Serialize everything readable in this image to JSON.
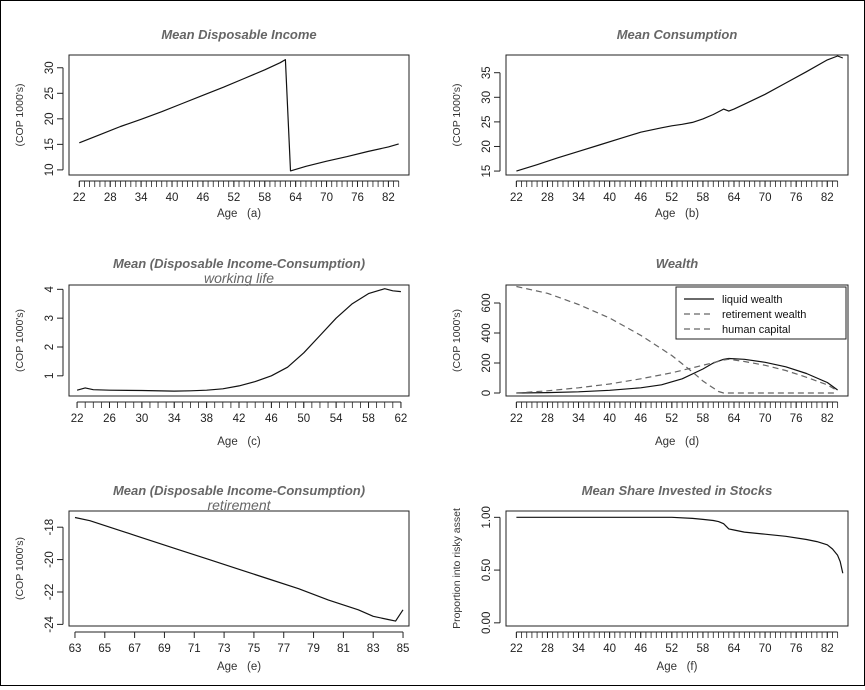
{
  "chart_data": [
    {
      "type": "line",
      "title": "Mean Disposable Income",
      "subtitle": "",
      "xlabel": "Age   (a)",
      "ylabel": "(COP 1000's)",
      "xlim": [
        20,
        86
      ],
      "ylim": [
        9,
        32.5
      ],
      "xticks": [
        22,
        28,
        34,
        40,
        46,
        52,
        58,
        64,
        70,
        76,
        82
      ],
      "minor_xticks": {
        "from": 22,
        "to": 84,
        "step": 1
      },
      "yticks": [
        10,
        15,
        20,
        25,
        30
      ],
      "series": [
        {
          "color": "#111111",
          "dash": "",
          "x": [
            22,
            26,
            30,
            34,
            38,
            42,
            46,
            50,
            54,
            58,
            61,
            62,
            63,
            66,
            70,
            74,
            78,
            82,
            84
          ],
          "y": [
            15.3,
            16.9,
            18.5,
            19.9,
            21.4,
            23.0,
            24.6,
            26.2,
            27.9,
            29.6,
            31.0,
            31.6,
            9.8,
            10.7,
            11.7,
            12.6,
            13.6,
            14.5,
            15.1
          ]
        }
      ]
    },
    {
      "type": "line",
      "title": "Mean Consumption",
      "subtitle": "",
      "xlabel": "Age   (b)",
      "ylabel": "(COP 1000's)",
      "xlim": [
        20,
        86
      ],
      "ylim": [
        14.2,
        38.6
      ],
      "xticks": [
        22,
        28,
        34,
        40,
        46,
        52,
        58,
        64,
        70,
        76,
        82
      ],
      "minor_xticks": {
        "from": 22,
        "to": 84,
        "step": 1
      },
      "yticks": [
        15,
        20,
        25,
        30,
        35
      ],
      "series": [
        {
          "color": "#111111",
          "dash": "",
          "x": [
            22,
            26,
            30,
            34,
            38,
            42,
            46,
            50,
            52,
            54,
            56,
            58,
            60,
            62,
            63,
            64,
            66,
            70,
            74,
            78,
            82,
            84,
            85
          ],
          "y": [
            15.0,
            16.3,
            17.7,
            19.0,
            20.3,
            21.6,
            22.9,
            23.8,
            24.2,
            24.5,
            24.9,
            25.6,
            26.5,
            27.6,
            27.2,
            27.6,
            28.6,
            30.6,
            32.9,
            35.2,
            37.6,
            38.4,
            38.0
          ]
        }
      ]
    },
    {
      "type": "line",
      "title": "Mean (Disposable Income-Consumption)",
      "subtitle": "working life",
      "xlabel": "Age   (c)",
      "ylabel": "(COP 1000's)",
      "xlim": [
        21,
        63
      ],
      "ylim": [
        0.3,
        4.15
      ],
      "xticks": [
        22,
        26,
        30,
        34,
        38,
        42,
        46,
        50,
        54,
        58,
        62
      ],
      "minor_xticks": {
        "from": 22,
        "to": 62,
        "step": 1
      },
      "yticks": [
        1,
        2,
        3,
        4
      ],
      "series": [
        {
          "color": "#111111",
          "dash": "",
          "x": [
            22,
            23,
            24,
            26,
            30,
            34,
            36,
            38,
            40,
            42,
            44,
            46,
            48,
            50,
            52,
            54,
            56,
            58,
            60,
            61,
            62
          ],
          "y": [
            0.5,
            0.58,
            0.52,
            0.5,
            0.49,
            0.47,
            0.48,
            0.5,
            0.55,
            0.65,
            0.8,
            1.0,
            1.3,
            1.8,
            2.4,
            3.0,
            3.5,
            3.85,
            4.02,
            3.95,
            3.92
          ]
        }
      ]
    },
    {
      "type": "line",
      "title": "Wealth",
      "subtitle": "",
      "xlabel": "Age   (d)",
      "ylabel": "(COP 1000's)",
      "xlim": [
        20,
        86
      ],
      "ylim": [
        -20,
        720
      ],
      "xticks": [
        22,
        28,
        34,
        40,
        46,
        52,
        58,
        64,
        70,
        76,
        82
      ],
      "minor_xticks": {
        "from": 22,
        "to": 84,
        "step": 1
      },
      "yticks": [
        0,
        200,
        400,
        600
      ],
      "legend": {
        "position": "top-right",
        "entries": [
          "liquid wealth",
          "retirement wealth",
          "human capital"
        ]
      },
      "series": [
        {
          "name": "liquid wealth",
          "color": "#111111",
          "dash": "",
          "x": [
            22,
            28,
            34,
            40,
            46,
            50,
            54,
            58,
            60,
            62,
            63,
            66,
            70,
            74,
            78,
            82,
            84
          ],
          "y": [
            0,
            3,
            8,
            18,
            35,
            55,
            95,
            160,
            200,
            225,
            230,
            225,
            205,
            175,
            130,
            70,
            20
          ]
        },
        {
          "name": "retirement wealth",
          "color": "#666666",
          "dash": "6,4",
          "x": [
            22,
            28,
            34,
            40,
            46,
            52,
            58,
            62,
            63,
            66,
            70,
            74,
            78,
            82,
            84
          ],
          "y": [
            0,
            15,
            35,
            60,
            95,
            135,
            185,
            220,
            225,
            210,
            185,
            150,
            105,
            55,
            15
          ]
        },
        {
          "name": "human capital",
          "color": "#666666",
          "dash": "6,4",
          "x": [
            22,
            28,
            34,
            40,
            46,
            52,
            56,
            58,
            61,
            62,
            63,
            84
          ],
          "y": [
            710,
            665,
            590,
            500,
            385,
            250,
            140,
            80,
            10,
            0,
            0,
            0
          ]
        }
      ]
    },
    {
      "type": "line",
      "title": "Mean (Disposable Income-Consumption)",
      "subtitle": "retirement",
      "xlabel": "Age   (e)",
      "ylabel": "(COP 1000's)",
      "xlim": [
        62.6,
        85.4
      ],
      "ylim": [
        -24.1,
        -17.0
      ],
      "xticks": [
        63,
        65,
        67,
        69,
        71,
        73,
        75,
        77,
        79,
        81,
        83,
        85
      ],
      "minor_xticks": null,
      "yticks": [
        -18,
        -20,
        -22,
        -24
      ],
      "series": [
        {
          "color": "#111111",
          "dash": "",
          "x": [
            63,
            64,
            65,
            66,
            67,
            68,
            70,
            72,
            74,
            76,
            78,
            80,
            82,
            83,
            84,
            84.5,
            85
          ],
          "y": [
            -17.4,
            -17.6,
            -17.9,
            -18.2,
            -18.5,
            -18.8,
            -19.4,
            -20.0,
            -20.6,
            -21.2,
            -21.8,
            -22.5,
            -23.1,
            -23.5,
            -23.7,
            -23.8,
            -23.1
          ]
        }
      ]
    },
    {
      "type": "line",
      "title": "Mean Share Invested in Stocks",
      "subtitle": "",
      "xlabel": "Age   (f)",
      "ylabel": "Proportion into risky asset",
      "xlim": [
        20,
        86
      ],
      "ylim": [
        -0.03,
        1.06
      ],
      "xticks": [
        22,
        28,
        34,
        40,
        46,
        52,
        58,
        64,
        70,
        76,
        82
      ],
      "minor_xticks": {
        "from": 22,
        "to": 84,
        "step": 1
      },
      "yticks": [
        0.0,
        0.5,
        1.0
      ],
      "ytick_labels": [
        "0.00",
        "0.50",
        "1.00"
      ],
      "series": [
        {
          "color": "#111111",
          "dash": "",
          "x": [
            22,
            40,
            52,
            56,
            58,
            60,
            61,
            62,
            63,
            64,
            66,
            70,
            74,
            78,
            80,
            82,
            83,
            84,
            84.5,
            85
          ],
          "y": [
            1.0,
            1.0,
            1.0,
            0.99,
            0.98,
            0.97,
            0.96,
            0.94,
            0.89,
            0.88,
            0.86,
            0.84,
            0.82,
            0.79,
            0.77,
            0.74,
            0.7,
            0.64,
            0.58,
            0.47
          ]
        }
      ]
    }
  ]
}
